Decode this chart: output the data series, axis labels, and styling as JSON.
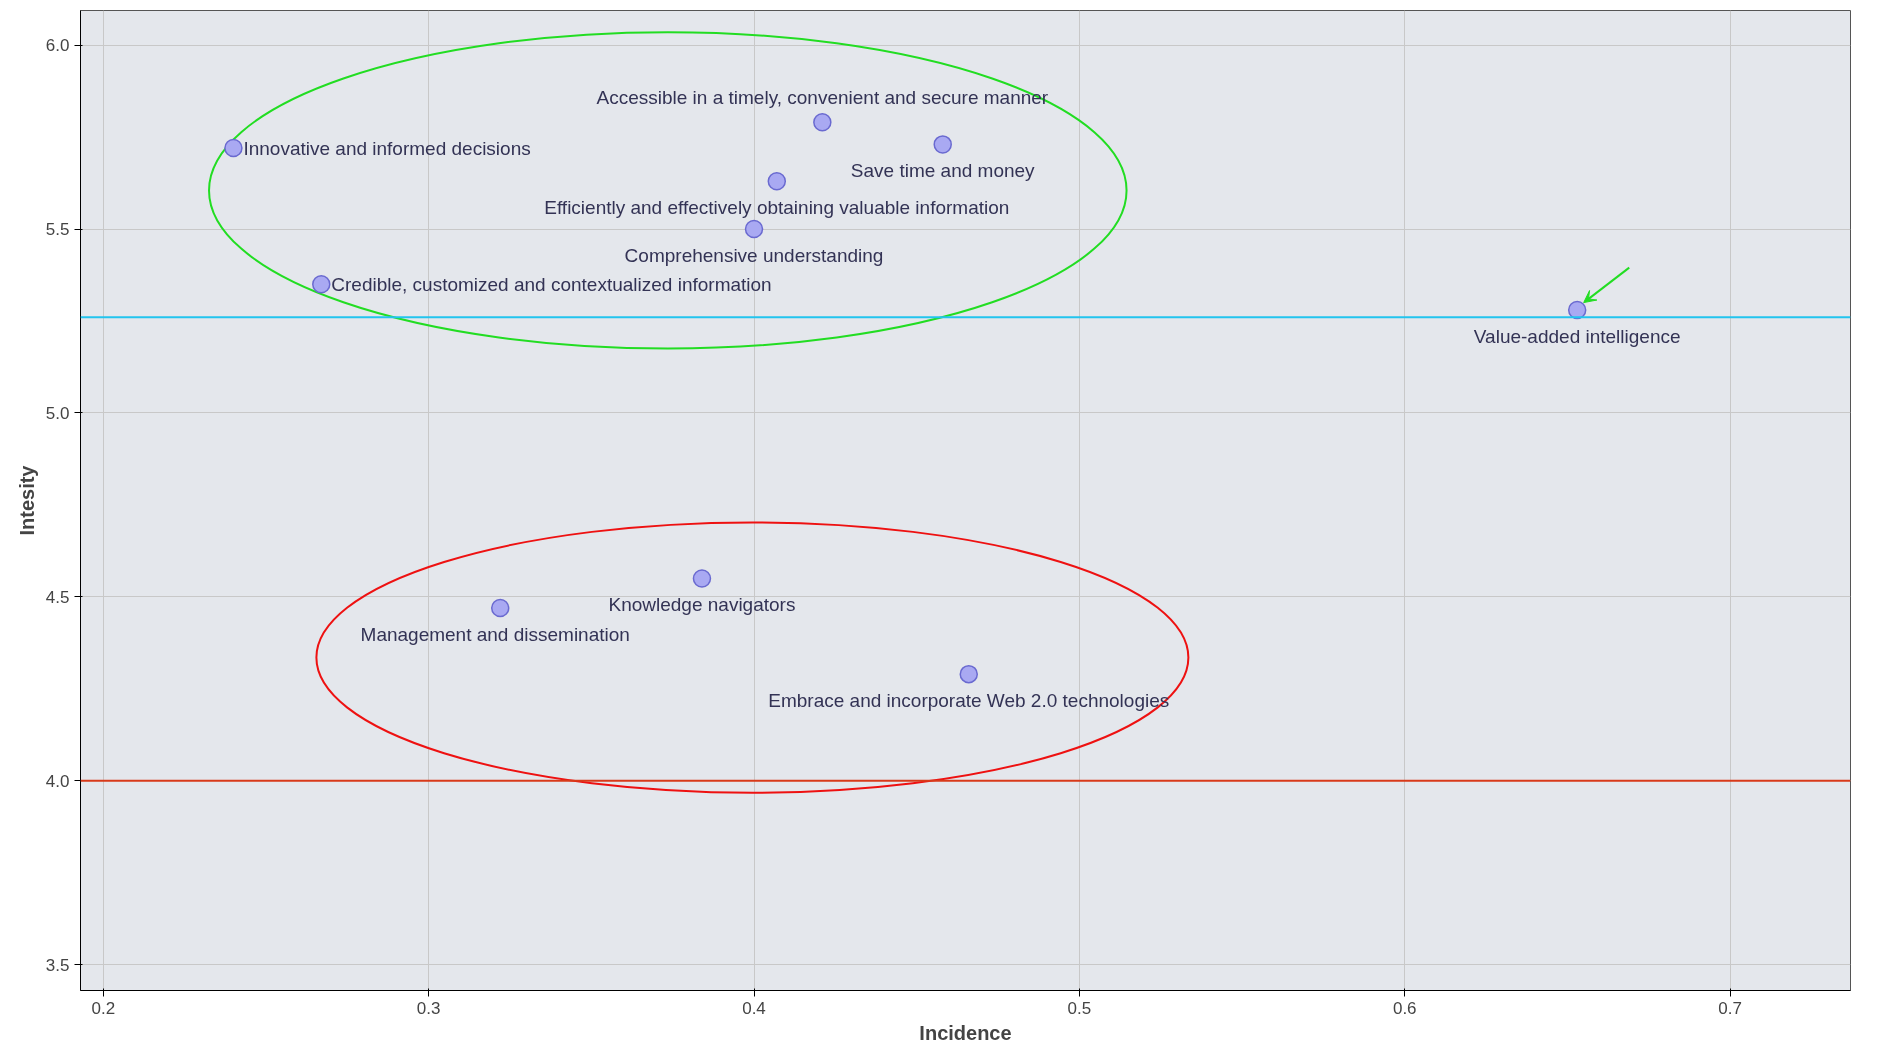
{
  "chart_data": {
    "type": "scatter",
    "xlabel": "Incidence",
    "ylabel": "Intesity",
    "series": [
      {
        "color": "#a9a9f2",
        "x": [
          0.24,
          0.421,
          0.458,
          0.407,
          0.4,
          0.267,
          0.653,
          0.384,
          0.322,
          0.466
        ],
        "values": [
          5.72,
          5.79,
          5.73,
          5.63,
          5.5,
          5.35,
          5.28,
          4.55,
          4.47,
          4.29
        ]
      }
    ],
    "annotations": [
      {
        "text": "Innovative and informed decisions",
        "x": 0.24,
        "y": 5.72
      },
      {
        "text": "Accessible in a timely, convenient and secure manner",
        "x": 0.421,
        "y": 5.79
      },
      {
        "text": "Save time and money",
        "x": 0.458,
        "y": 5.73
      },
      {
        "text": "Efficiently and effectively obtaining valuable information",
        "x": 0.407,
        "y": 5.63
      },
      {
        "text": "Comprehensive understanding",
        "x": 0.4,
        "y": 5.5
      },
      {
        "text": "Credible, customized and contextualized information",
        "x": 0.267,
        "y": 5.35
      },
      {
        "text": "Value-added intelligence",
        "x": 0.653,
        "y": 5.28
      },
      {
        "text": "Knowledge navigators",
        "x": 0.384,
        "y": 4.55
      },
      {
        "text": "Management and dissemination",
        "x": 0.322,
        "y": 4.47
      },
      {
        "text": "Embrace and incorporate Web 2.0 technologies",
        "x": 0.466,
        "y": 4.29
      }
    ],
    "ref_lines": [
      {
        "axis": "y",
        "value": 5.26,
        "color": "#22c4ee"
      },
      {
        "axis": "y",
        "value": 4.0,
        "color": "#d83a1a"
      }
    ],
    "xlim": [
      0.193,
      0.737
    ],
    "ylim": [
      3.43,
      6.094
    ],
    "xticks": [
      0.2,
      0.3,
      0.4,
      0.5,
      0.6,
      0.7
    ],
    "yticks": [
      {
        "value": 3.5,
        "label": "3.5"
      },
      {
        "value": 4.0,
        "label": "4.0"
      },
      {
        "value": 4.5,
        "label": "4.5"
      },
      {
        "value": 5.0,
        "label": "5.0"
      },
      {
        "value": 5.5,
        "label": "5.5"
      },
      {
        "value": 6.0,
        "label": "6.0"
      }
    ],
    "grid": true,
    "marker": "circle"
  }
}
